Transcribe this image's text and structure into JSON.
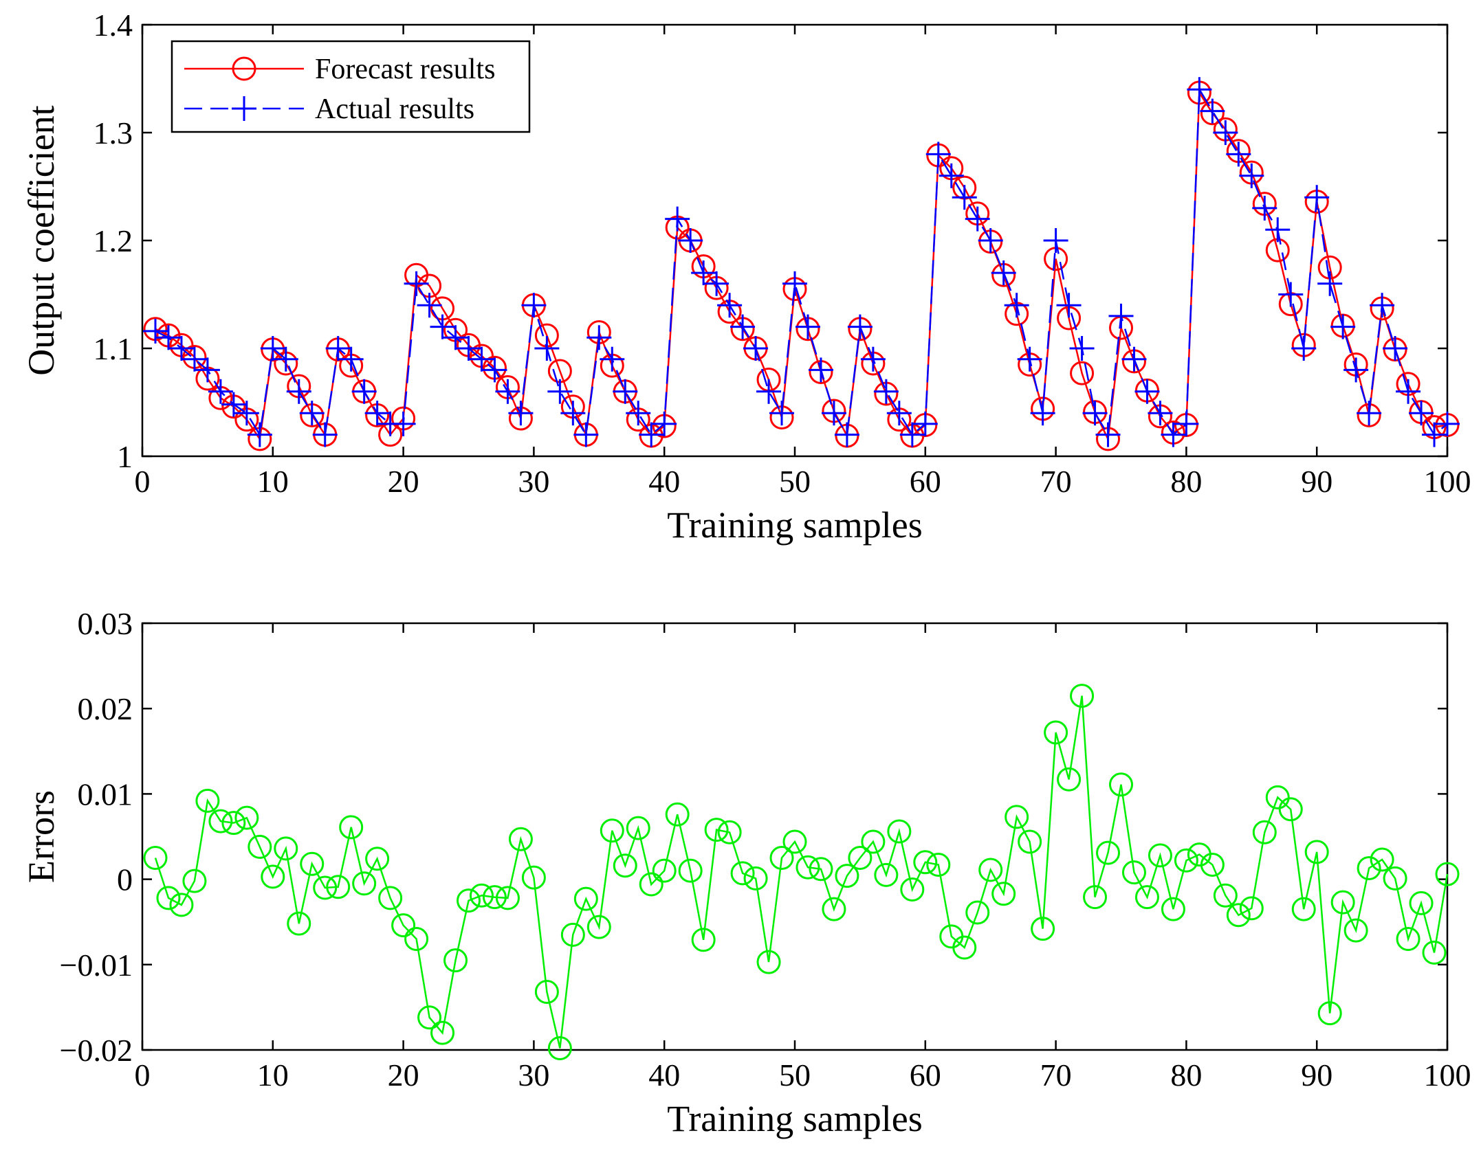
{
  "chart_data": [
    {
      "type": "line",
      "xlabel": "Training samples",
      "ylabel": "Output coefficient",
      "xlim": [
        0,
        100
      ],
      "ylim": [
        1,
        1.4
      ],
      "xticks": [
        "0",
        "10",
        "20",
        "30",
        "40",
        "50",
        "60",
        "70",
        "80",
        "90",
        "100"
      ],
      "yticks": [
        "1",
        "1.1",
        "1.2",
        "1.3",
        "1.4"
      ],
      "grid": false,
      "legend_position": "top-left",
      "x": [
        1,
        2,
        3,
        4,
        5,
        6,
        7,
        8,
        9,
        10,
        11,
        12,
        13,
        14,
        15,
        16,
        17,
        18,
        19,
        20,
        21,
        22,
        23,
        24,
        25,
        26,
        27,
        28,
        29,
        30,
        31,
        32,
        33,
        34,
        35,
        36,
        37,
        38,
        39,
        40,
        41,
        42,
        43,
        44,
        45,
        46,
        47,
        48,
        49,
        50,
        51,
        52,
        53,
        54,
        55,
        56,
        57,
        58,
        59,
        60,
        61,
        62,
        63,
        64,
        65,
        66,
        67,
        68,
        69,
        70,
        71,
        72,
        73,
        74,
        75,
        76,
        77,
        78,
        79,
        80,
        81,
        82,
        83,
        84,
        85,
        86,
        87,
        88,
        89,
        90,
        91,
        92,
        93,
        94,
        95,
        96,
        97,
        98,
        99,
        100
      ],
      "series": [
        {
          "name": "Forecast results",
          "color": "#ff0000",
          "line": "solid",
          "marker": "circle",
          "values": [
            1.118,
            1.112,
            1.103,
            1.092,
            1.072,
            1.054,
            1.046,
            1.034,
            1.016,
            1.099,
            1.086,
            1.065,
            1.038,
            1.02,
            1.099,
            1.084,
            1.06,
            1.038,
            1.02,
            1.035,
            1.168,
            1.158,
            1.137,
            1.117,
            1.103,
            1.093,
            1.082,
            1.064,
            1.035,
            1.14,
            1.112,
            1.079,
            1.046,
            1.02,
            1.115,
            1.084,
            1.06,
            1.034,
            1.019,
            1.028,
            1.212,
            1.2,
            1.176,
            1.156,
            1.134,
            1.118,
            1.1,
            1.071,
            1.036,
            1.155,
            1.118,
            1.078,
            1.042,
            1.019,
            1.118,
            1.086,
            1.058,
            1.034,
            1.019,
            1.029,
            1.279,
            1.267,
            1.249,
            1.225,
            1.199,
            1.168,
            1.132,
            1.085,
            1.044,
            1.183,
            1.128,
            1.077,
            1.041,
            1.016,
            1.119,
            1.088,
            1.061,
            1.037,
            1.022,
            1.029,
            1.337,
            1.318,
            1.303,
            1.283,
            1.263,
            1.234,
            1.191,
            1.141,
            1.103,
            1.236,
            1.175,
            1.121,
            1.085,
            1.038,
            1.137,
            1.099,
            1.067,
            1.041,
            1.027,
            1.029
          ]
        },
        {
          "name": "Actual results",
          "color": "#0000ff",
          "line": "dashed",
          "marker": "plus",
          "values": [
            1.116,
            1.11,
            1.1,
            1.09,
            1.08,
            1.06,
            1.048,
            1.04,
            1.02,
            1.1,
            1.09,
            1.06,
            1.04,
            1.02,
            1.1,
            1.09,
            1.06,
            1.04,
            1.03,
            1.03,
            1.16,
            1.14,
            1.12,
            1.11,
            1.1,
            1.09,
            1.08,
            1.06,
            1.04,
            1.14,
            1.1,
            1.06,
            1.04,
            1.02,
            1.11,
            1.09,
            1.06,
            1.04,
            1.02,
            1.03,
            1.22,
            1.2,
            1.17,
            1.16,
            1.14,
            1.12,
            1.1,
            1.06,
            1.04,
            1.16,
            1.12,
            1.08,
            1.04,
            1.02,
            1.12,
            1.09,
            1.06,
            1.04,
            1.02,
            1.03,
            1.28,
            1.26,
            1.24,
            1.22,
            1.2,
            1.17,
            1.14,
            1.09,
            1.04,
            1.2,
            1.14,
            1.1,
            1.04,
            1.02,
            1.13,
            1.09,
            1.06,
            1.04,
            1.02,
            1.03,
            1.34,
            1.32,
            1.3,
            1.28,
            1.26,
            1.23,
            1.21,
            1.15,
            1.1,
            1.24,
            1.16,
            1.12,
            1.08,
            1.04,
            1.14,
            1.1,
            1.06,
            1.04,
            1.02,
            1.03
          ]
        }
      ]
    },
    {
      "type": "line",
      "xlabel": "Training samples",
      "ylabel": "Errors",
      "xlim": [
        0,
        100
      ],
      "ylim": [
        -0.02,
        0.03
      ],
      "xticks": [
        "0",
        "10",
        "20",
        "30",
        "40",
        "50",
        "60",
        "70",
        "80",
        "90",
        "100"
      ],
      "yticks": [
        "−0.02",
        "−0.01",
        "0",
        "0.01",
        "0.02",
        "0.03"
      ],
      "grid": false,
      "x": [
        1,
        2,
        3,
        4,
        5,
        6,
        7,
        8,
        9,
        10,
        11,
        12,
        13,
        14,
        15,
        16,
        17,
        18,
        19,
        20,
        21,
        22,
        23,
        24,
        25,
        26,
        27,
        28,
        29,
        30,
        31,
        32,
        33,
        34,
        35,
        36,
        37,
        38,
        39,
        40,
        41,
        42,
        43,
        44,
        45,
        46,
        47,
        48,
        49,
        50,
        51,
        52,
        53,
        54,
        55,
        56,
        57,
        58,
        59,
        60,
        61,
        62,
        63,
        64,
        65,
        66,
        67,
        68,
        69,
        70,
        71,
        72,
        73,
        74,
        75,
        76,
        77,
        78,
        79,
        80,
        81,
        82,
        83,
        84,
        85,
        86,
        87,
        88,
        89,
        90,
        91,
        92,
        93,
        94,
        95,
        96,
        97,
        98,
        99,
        100
      ],
      "series": [
        {
          "color": "#00ee00",
          "line": "solid",
          "marker": "circle",
          "values": [
            0.0025,
            -0.0022,
            -0.003,
            -0.0002,
            0.0092,
            0.0068,
            0.0066,
            0.0072,
            0.0038,
            0.0003,
            0.0036,
            -0.0052,
            0.0018,
            -0.001,
            -0.0009,
            0.0061,
            -0.0005,
            0.0024,
            -0.0022,
            -0.0054,
            -0.007,
            -0.0162,
            -0.018,
            -0.0095,
            -0.0025,
            -0.0019,
            -0.0021,
            -0.0022,
            0.0047,
            0.0002,
            -0.0132,
            -0.0198,
            -0.0065,
            -0.0023,
            -0.0056,
            0.0057,
            0.0016,
            0.006,
            -0.0006,
            0.001,
            0.0076,
            0.001,
            -0.0071,
            0.0058,
            0.0055,
            0.0007,
            0.0001,
            -0.0097,
            0.0025,
            0.0044,
            0.0014,
            0.0012,
            -0.0035,
            0.0004,
            0.0025,
            0.0044,
            0.0005,
            0.0056,
            -0.0012,
            0.002,
            0.0017,
            -0.0067,
            -0.008,
            -0.0039,
            0.0011,
            -0.0017,
            0.0073,
            0.0044,
            -0.0058,
            0.0172,
            0.0117,
            0.0215,
            -0.0021,
            0.0031,
            0.0111,
            0.0008,
            -0.0021,
            0.0028,
            -0.0035,
            0.0022,
            0.0029,
            0.0017,
            -0.0019,
            -0.0042,
            -0.0034,
            0.0055,
            0.0096,
            0.0082,
            -0.0035,
            0.0032,
            -0.0157,
            -0.0027,
            -0.006,
            0.0013,
            0.0023,
            0.0001,
            -0.007,
            -0.0028,
            -0.0086,
            0.0006
          ]
        }
      ]
    }
  ]
}
